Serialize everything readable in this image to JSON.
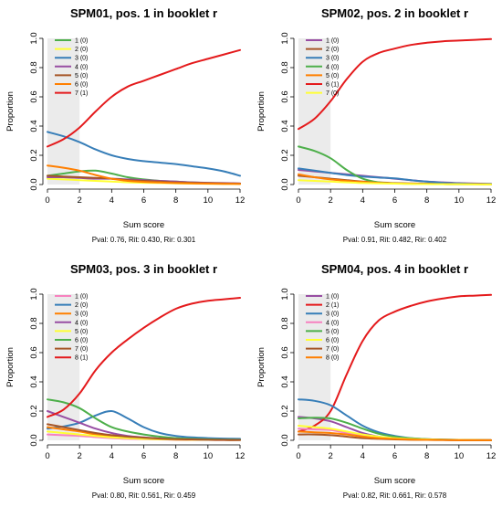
{
  "chart_data": [
    {
      "type": "line",
      "title": "SPM01, pos. 1 in booklet r",
      "subtitle": "Pval: 0.76, Rit: 0.430, Rir: 0.301",
      "xlabel": "Sum score",
      "ylabel": "Proportion",
      "xlim": [
        0,
        12
      ],
      "ylim": [
        0,
        1
      ],
      "xticks": [
        "0",
        "2",
        "4",
        "6",
        "8",
        "10",
        "12"
      ],
      "yticks": [
        "0.0",
        "0.2",
        "0.4",
        "0.6",
        "0.8",
        "1.0"
      ],
      "shade_x": [
        0,
        2
      ],
      "legend": "top-left",
      "x": [
        0,
        1,
        2,
        3,
        4,
        5,
        6,
        7,
        8,
        9,
        10,
        11,
        12
      ],
      "series": [
        {
          "name": "1 (0)",
          "color": "#4daf4a",
          "values": [
            0.06,
            0.075,
            0.09,
            0.095,
            0.075,
            0.05,
            0.035,
            0.025,
            0.02,
            0.015,
            0.01,
            0.008,
            0.006
          ]
        },
        {
          "name": "2 (0)",
          "color": "#ffff33",
          "values": [
            0.04,
            0.035,
            0.03,
            0.025,
            0.02,
            0.015,
            0.012,
            0.01,
            0.008,
            0.006,
            0.005,
            0.004,
            0.003
          ]
        },
        {
          "name": "3 (0)",
          "color": "#377eb8",
          "values": [
            0.36,
            0.33,
            0.29,
            0.24,
            0.2,
            0.175,
            0.16,
            0.15,
            0.14,
            0.125,
            0.11,
            0.09,
            0.06
          ]
        },
        {
          "name": "4 (0)",
          "color": "#984ea3",
          "values": [
            0.05,
            0.05,
            0.045,
            0.04,
            0.04,
            0.035,
            0.03,
            0.025,
            0.02,
            0.015,
            0.012,
            0.01,
            0.008
          ]
        },
        {
          "name": "5 (0)",
          "color": "#a65628",
          "values": [
            0.06,
            0.055,
            0.05,
            0.045,
            0.04,
            0.03,
            0.025,
            0.02,
            0.015,
            0.012,
            0.01,
            0.008,
            0.006
          ]
        },
        {
          "name": "6 (0)",
          "color": "#ff7f00",
          "values": [
            0.13,
            0.115,
            0.095,
            0.065,
            0.04,
            0.025,
            0.018,
            0.014,
            0.01,
            0.008,
            0.006,
            0.005,
            0.004
          ]
        },
        {
          "name": "7 (1)",
          "color": "#e41a1c",
          "values": [
            0.26,
            0.31,
            0.39,
            0.5,
            0.6,
            0.67,
            0.71,
            0.75,
            0.79,
            0.83,
            0.86,
            0.89,
            0.92
          ]
        }
      ]
    },
    {
      "type": "line",
      "title": "SPM02, pos. 2 in booklet r",
      "subtitle": "Pval: 0.91, Rit: 0.482, Rir: 0.402",
      "xlabel": "Sum score",
      "ylabel": "Proportion",
      "xlim": [
        0,
        12
      ],
      "ylim": [
        0,
        1
      ],
      "xticks": [
        "0",
        "2",
        "4",
        "6",
        "8",
        "10",
        "12"
      ],
      "yticks": [
        "0.0",
        "0.2",
        "0.4",
        "0.6",
        "0.8",
        "1.0"
      ],
      "shade_x": [
        0,
        2
      ],
      "legend": "top-left",
      "x": [
        0,
        1,
        2,
        3,
        4,
        5,
        6,
        7,
        8,
        9,
        10,
        11,
        12
      ],
      "series": [
        {
          "name": "1 (0)",
          "color": "#984ea3",
          "values": [
            0.1,
            0.09,
            0.08,
            0.07,
            0.06,
            0.05,
            0.04,
            0.03,
            0.02,
            0.015,
            0.01,
            0.007,
            0.005
          ]
        },
        {
          "name": "2 (0)",
          "color": "#a65628",
          "values": [
            0.06,
            0.05,
            0.04,
            0.03,
            0.02,
            0.015,
            0.01,
            0.008,
            0.006,
            0.005,
            0.004,
            0.003,
            0.002
          ]
        },
        {
          "name": "3 (0)",
          "color": "#377eb8",
          "values": [
            0.11,
            0.095,
            0.08,
            0.065,
            0.055,
            0.048,
            0.042,
            0.03,
            0.02,
            0.012,
            0.008,
            0.005,
            0.004
          ]
        },
        {
          "name": "4 (0)",
          "color": "#4daf4a",
          "values": [
            0.26,
            0.23,
            0.18,
            0.1,
            0.04,
            0.015,
            0.008,
            0.005,
            0.004,
            0.003,
            0.002,
            0.002,
            0.001
          ]
        },
        {
          "name": "5 (0)",
          "color": "#ff7f00",
          "values": [
            0.07,
            0.05,
            0.035,
            0.025,
            0.018,
            0.012,
            0.008,
            0.006,
            0.004,
            0.003,
            0.002,
            0.002,
            0.001
          ]
        },
        {
          "name": "6 (1)",
          "color": "#e41a1c",
          "values": [
            0.38,
            0.45,
            0.57,
            0.72,
            0.84,
            0.9,
            0.93,
            0.955,
            0.97,
            0.98,
            0.985,
            0.99,
            0.995
          ]
        },
        {
          "name": "7 (0)",
          "color": "#ffff33",
          "values": [
            0.03,
            0.025,
            0.02,
            0.015,
            0.01,
            0.008,
            0.006,
            0.004,
            0.003,
            0.002,
            0.002,
            0.001,
            0.001
          ]
        }
      ]
    },
    {
      "type": "line",
      "title": "SPM03, pos. 3 in booklet r",
      "subtitle": "Pval: 0.80, Rit: 0.561, Rir: 0.459",
      "xlabel": "Sum score",
      "ylabel": "Proportion",
      "xlim": [
        0,
        12
      ],
      "ylim": [
        0,
        1
      ],
      "xticks": [
        "0",
        "2",
        "4",
        "6",
        "8",
        "10",
        "12"
      ],
      "yticks": [
        "0.0",
        "0.2",
        "0.4",
        "0.6",
        "0.8",
        "1.0"
      ],
      "shade_x": [
        0,
        2
      ],
      "legend": "top-left",
      "x": [
        0,
        1,
        2,
        3,
        4,
        5,
        6,
        7,
        8,
        9,
        10,
        11,
        12
      ],
      "series": [
        {
          "name": "1 (0)",
          "color": "#f781bf",
          "values": [
            0.04,
            0.035,
            0.03,
            0.022,
            0.015,
            0.01,
            0.008,
            0.006,
            0.005,
            0.004,
            0.003,
            0.002,
            0.002
          ]
        },
        {
          "name": "2 (0)",
          "color": "#377eb8",
          "values": [
            0.08,
            0.095,
            0.12,
            0.17,
            0.2,
            0.15,
            0.09,
            0.05,
            0.03,
            0.02,
            0.015,
            0.012,
            0.01
          ]
        },
        {
          "name": "3 (0)",
          "color": "#ff7f00",
          "values": [
            0.09,
            0.075,
            0.06,
            0.04,
            0.025,
            0.015,
            0.01,
            0.007,
            0.005,
            0.004,
            0.003,
            0.002,
            0.002
          ]
        },
        {
          "name": "4 (0)",
          "color": "#984ea3",
          "values": [
            0.2,
            0.16,
            0.12,
            0.08,
            0.05,
            0.03,
            0.02,
            0.012,
            0.008,
            0.006,
            0.004,
            0.003,
            0.002
          ]
        },
        {
          "name": "5 (0)",
          "color": "#ffff33",
          "values": [
            0.06,
            0.05,
            0.04,
            0.03,
            0.02,
            0.015,
            0.01,
            0.008,
            0.006,
            0.005,
            0.004,
            0.003,
            0.002
          ]
        },
        {
          "name": "6 (0)",
          "color": "#4daf4a",
          "values": [
            0.28,
            0.26,
            0.22,
            0.15,
            0.09,
            0.06,
            0.04,
            0.025,
            0.015,
            0.01,
            0.007,
            0.005,
            0.004
          ]
        },
        {
          "name": "7 (0)",
          "color": "#a65628",
          "values": [
            0.11,
            0.09,
            0.07,
            0.05,
            0.035,
            0.025,
            0.018,
            0.012,
            0.008,
            0.006,
            0.004,
            0.003,
            0.002
          ]
        },
        {
          "name": "8 (1)",
          "color": "#e41a1c",
          "values": [
            0.16,
            0.21,
            0.32,
            0.48,
            0.6,
            0.69,
            0.77,
            0.84,
            0.9,
            0.935,
            0.955,
            0.965,
            0.975
          ]
        }
      ]
    },
    {
      "type": "line",
      "title": "SPM04, pos. 4 in booklet r",
      "subtitle": "Pval: 0.82, Rit: 0.661, Rir: 0.578",
      "xlabel": "Sum score",
      "ylabel": "Proportion",
      "xlim": [
        0,
        12
      ],
      "ylim": [
        0,
        1
      ],
      "xticks": [
        "0",
        "2",
        "4",
        "6",
        "8",
        "10",
        "12"
      ],
      "yticks": [
        "0.0",
        "0.2",
        "0.4",
        "0.6",
        "0.8",
        "1.0"
      ],
      "shade_x": [
        0,
        2
      ],
      "legend": "top-left",
      "x": [
        0,
        1,
        2,
        3,
        4,
        5,
        6,
        7,
        8,
        9,
        10,
        11,
        12
      ],
      "series": [
        {
          "name": "1 (0)",
          "color": "#984ea3",
          "values": [
            0.16,
            0.15,
            0.13,
            0.09,
            0.05,
            0.025,
            0.012,
            0.007,
            0.004,
            0.003,
            0.002,
            0.001,
            0.001
          ]
        },
        {
          "name": "2 (1)",
          "color": "#e41a1c",
          "values": [
            0.06,
            0.1,
            0.2,
            0.45,
            0.68,
            0.82,
            0.88,
            0.92,
            0.95,
            0.97,
            0.985,
            0.99,
            0.995
          ]
        },
        {
          "name": "3 (0)",
          "color": "#377eb8",
          "values": [
            0.28,
            0.27,
            0.24,
            0.17,
            0.1,
            0.055,
            0.03,
            0.015,
            0.008,
            0.005,
            0.003,
            0.002,
            0.001
          ]
        },
        {
          "name": "4 (0)",
          "color": "#f781bf",
          "values": [
            0.08,
            0.075,
            0.07,
            0.05,
            0.03,
            0.018,
            0.01,
            0.006,
            0.004,
            0.003,
            0.002,
            0.001,
            0.001
          ]
        },
        {
          "name": "5 (0)",
          "color": "#4daf4a",
          "values": [
            0.15,
            0.155,
            0.15,
            0.12,
            0.08,
            0.045,
            0.025,
            0.014,
            0.008,
            0.005,
            0.003,
            0.002,
            0.001
          ]
        },
        {
          "name": "6 (0)",
          "color": "#ffff33",
          "values": [
            0.1,
            0.09,
            0.08,
            0.06,
            0.04,
            0.025,
            0.015,
            0.009,
            0.006,
            0.004,
            0.003,
            0.002,
            0.001
          ]
        },
        {
          "name": "7 (0)",
          "color": "#a65628",
          "values": [
            0.04,
            0.04,
            0.035,
            0.025,
            0.015,
            0.01,
            0.006,
            0.004,
            0.003,
            0.002,
            0.001,
            0.001,
            0.001
          ]
        },
        {
          "name": "8 (0)",
          "color": "#ff7f00",
          "values": [
            0.06,
            0.055,
            0.05,
            0.04,
            0.025,
            0.015,
            0.009,
            0.005,
            0.003,
            0.002,
            0.001,
            0.001,
            0.001
          ]
        }
      ]
    }
  ]
}
